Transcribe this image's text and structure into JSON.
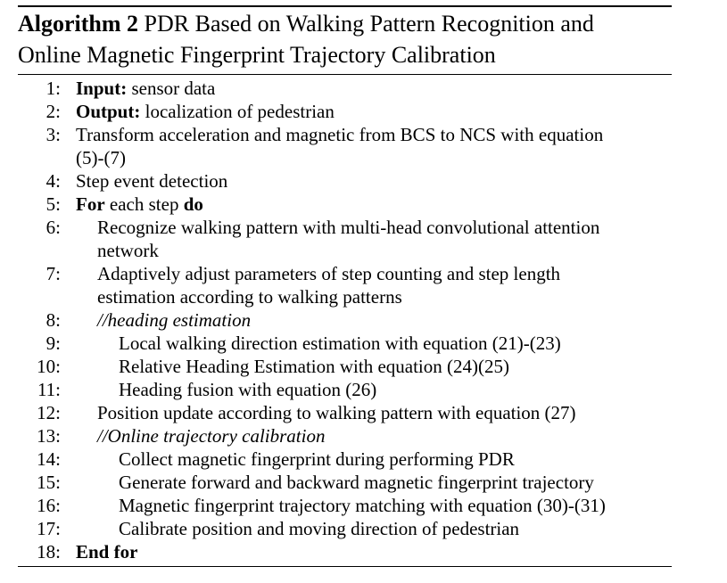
{
  "caption": {
    "label": "Algorithm 2",
    "title_line1": "PDR Based on Walking Pattern Recognition and",
    "title_line2": "Online Magnetic Fingerprint Trajectory Calibration"
  },
  "lines": [
    {
      "num": "1:",
      "kw": "Input:",
      "text": " sensor data"
    },
    {
      "num": "2:",
      "kw": "Output:",
      "text": " localization of pedestrian"
    },
    {
      "num": "3:",
      "text": "Transform acceleration and magnetic from BCS to NCS with equation",
      "cont": "(5)-(7)"
    },
    {
      "num": "4:",
      "text": "Step event detection"
    },
    {
      "num": "5:",
      "kw": "For",
      "text": " each step ",
      "kw2": "do"
    },
    {
      "num": "6:",
      "text": "Recognize walking pattern with multi-head convolutional attention",
      "cont": "network"
    },
    {
      "num": "7:",
      "text": "Adaptively adjust parameters of step counting and step length",
      "cont": "estimation according to walking patterns"
    },
    {
      "num": "8:",
      "comment": "//heading estimation"
    },
    {
      "num": "9:",
      "text": "Local walking direction estimation with equation (21)-(23)"
    },
    {
      "num": "10:",
      "text": "Relative Heading Estimation with equation (24)(25)"
    },
    {
      "num": "11:",
      "text": "Heading fusion with equation (26)"
    },
    {
      "num": "12:",
      "text": "Position update according to walking pattern with equation (27)"
    },
    {
      "num": "13:",
      "comment": "//Online trajectory calibration"
    },
    {
      "num": "14:",
      "text": "Collect magnetic fingerprint during performing PDR"
    },
    {
      "num": "15:",
      "text": "Generate forward and backward magnetic fingerprint trajectory"
    },
    {
      "num": "16:",
      "text": "Magnetic fingerprint trajectory matching with equation (30)-(31)"
    },
    {
      "num": "17:",
      "text": "Calibrate position and moving direction of pedestrian"
    },
    {
      "num": "18:",
      "kw": "End for"
    }
  ]
}
